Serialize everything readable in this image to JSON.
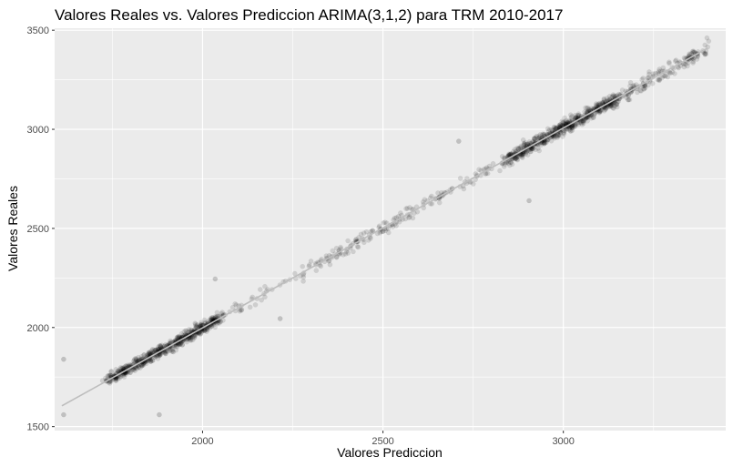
{
  "chart_data": {
    "type": "scatter",
    "title": "Valores Reales vs. Valores Prediccion ARIMA(3,1,2) para TRM 2010-2017",
    "xlabel": "Valores Prediccion",
    "ylabel": "Valores Reales",
    "xlim": [
      1590,
      3450
    ],
    "ylim": [
      1480,
      3510
    ],
    "x_ticks": [
      2000,
      2500,
      3000
    ],
    "y_ticks": [
      1500,
      2000,
      2500,
      3000,
      3500
    ],
    "x_tick_labels": [
      "2000",
      "2500",
      "3000"
    ],
    "y_tick_labels": [
      "1500",
      "2000",
      "2500",
      "3000",
      "3500"
    ],
    "grid": true,
    "background": "#ebebeb",
    "point_color": "#000000",
    "point_alpha": 0.12,
    "fit_line": {
      "x": [
        1610,
        3400
      ],
      "y": [
        1605,
        3410
      ],
      "color": "#bdbdbd"
    },
    "clusters": [
      {
        "x_range": [
          1740,
          2050
        ],
        "count": 650,
        "spread": 25
      },
      {
        "x_range": [
          2050,
          2300
        ],
        "count": 40,
        "spread": 30
      },
      {
        "x_range": [
          2300,
          2850
        ],
        "count": 180,
        "spread": 28
      },
      {
        "x_range": [
          2850,
          3150
        ],
        "count": 600,
        "spread": 30
      },
      {
        "x_range": [
          3150,
          3400
        ],
        "count": 160,
        "spread": 35
      }
    ],
    "outliers": [
      {
        "x": 1615,
        "y": 1840
      },
      {
        "x": 1615,
        "y": 1560
      },
      {
        "x": 1880,
        "y": 1560
      },
      {
        "x": 2035,
        "y": 2245
      },
      {
        "x": 2215,
        "y": 2045
      },
      {
        "x": 2905,
        "y": 2640
      },
      {
        "x": 2710,
        "y": 2940
      }
    ]
  }
}
